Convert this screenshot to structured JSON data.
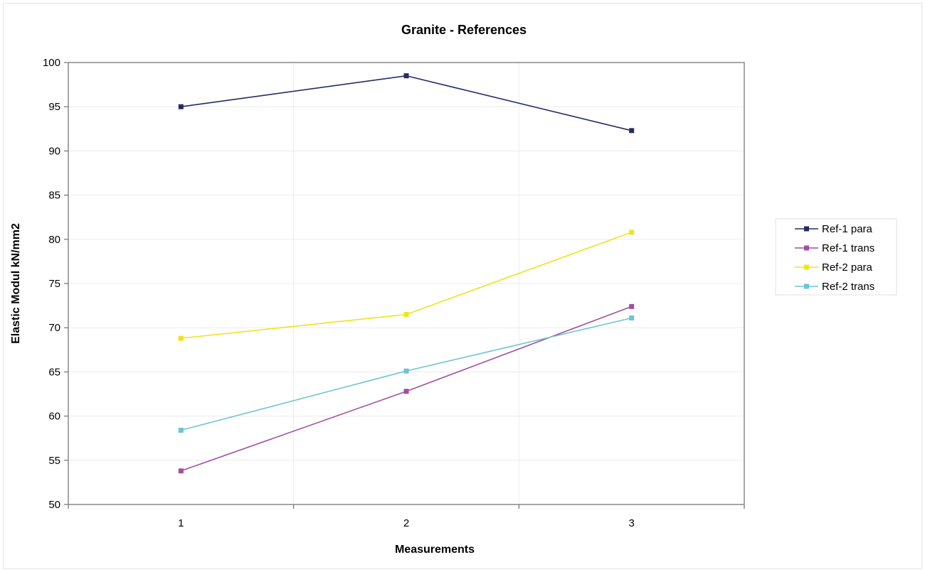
{
  "chart_data": {
    "type": "line",
    "title": "Granite - References",
    "xlabel": "Measurements",
    "ylabel": "Elastic Modul kN/mm2",
    "categories": [
      "1",
      "2",
      "3"
    ],
    "ylim": [
      50,
      100
    ],
    "yticks": [
      "50",
      "55",
      "60",
      "65",
      "70",
      "75",
      "80",
      "85",
      "90",
      "95",
      "100"
    ],
    "grid": true,
    "legend_position": "right",
    "series": [
      {
        "name": "Ref-1 para",
        "color": "#262c62",
        "values": [
          95.0,
          98.5,
          92.3
        ]
      },
      {
        "name": "Ref-1 trans",
        "color": "#a24fa0",
        "values": [
          53.8,
          62.8,
          72.4
        ]
      },
      {
        "name": "Ref-2 para",
        "color": "#f0e31c",
        "values": [
          68.8,
          71.5,
          80.8
        ]
      },
      {
        "name": "Ref-2 trans",
        "color": "#6fc3d3",
        "values": [
          58.4,
          65.1,
          71.1
        ]
      }
    ]
  }
}
